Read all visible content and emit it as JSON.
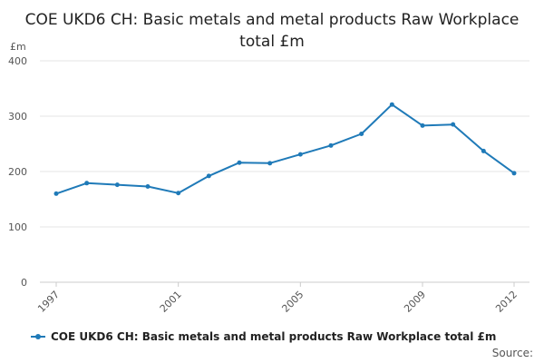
{
  "chart_data": {
    "type": "line",
    "title": "COE UKD6 CH: Basic metals and metal products Raw Workplace total £m",
    "ylabel": "£m",
    "xlabel": "",
    "ylim": [
      0,
      400
    ],
    "yticks": [
      "0",
      "100",
      "200",
      "300",
      "400"
    ],
    "xlim": [
      1997,
      2012
    ],
    "xticks": [
      "1997",
      "2001",
      "2005",
      "2009",
      "2012"
    ],
    "grid": true,
    "legend_position": "bottom",
    "series": [
      {
        "name": "COE UKD6 CH: Basic metals and metal products Raw Workplace total £m",
        "color": "#1f7ab8",
        "x": [
          1997,
          1998,
          1999,
          2000,
          2001,
          2002,
          2003,
          2004,
          2005,
          2006,
          2007,
          2008,
          2009,
          2010,
          2011,
          2012
        ],
        "values": [
          160,
          179,
          176,
          173,
          161,
          192,
          216,
          215,
          231,
          247,
          268,
          321,
          283,
          285,
          237,
          197
        ]
      }
    ]
  },
  "source_label": "Source:"
}
